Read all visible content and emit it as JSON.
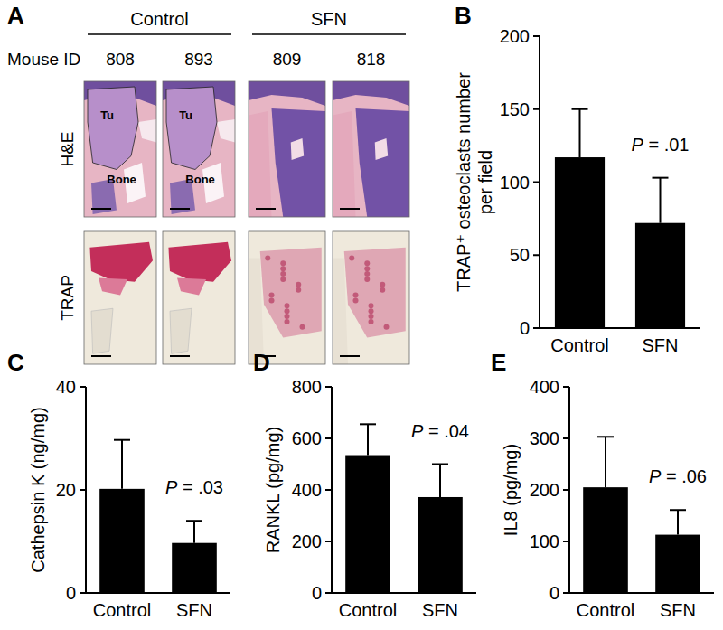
{
  "histology": {
    "panel": "A",
    "id_label": "Mouse ID",
    "groups": [
      {
        "label": "Control",
        "mouse_ids": [
          "808",
          "893"
        ]
      },
      {
        "label": "SFN",
        "mouse_ids": [
          "809",
          "818"
        ]
      }
    ],
    "rows": [
      "H&E",
      "TRAP"
    ],
    "annotations": [
      {
        "mouse": "808",
        "texts": [
          "Tu",
          "Bone"
        ]
      },
      {
        "mouse": "893",
        "texts": [
          "Tu",
          "Bone"
        ]
      }
    ]
  },
  "chart_data": [
    {
      "panel": "B",
      "type": "bar",
      "categories": [
        "Control",
        "SFN"
      ],
      "values": [
        117,
        72
      ],
      "errors": [
        33,
        31
      ],
      "color": "#000000",
      "ylim": [
        0,
        200
      ],
      "yticks": [
        0,
        50,
        100,
        150,
        200
      ],
      "y_label": [
        "TRAP⁺ osteoclasts number",
        "per field"
      ],
      "annotation": "P = .01"
    },
    {
      "panel": "C",
      "type": "bar",
      "categories": [
        "Control",
        "SFN"
      ],
      "values": [
        20.2,
        9.7
      ],
      "errors": [
        9.5,
        4.3
      ],
      "color": "#000000",
      "ylim": [
        0,
        40
      ],
      "yticks": [
        0,
        20,
        40
      ],
      "y_label": [
        "Cathepsin K (ng/mg)"
      ],
      "annotation": "P = .03"
    },
    {
      "panel": "D",
      "type": "bar",
      "categories": [
        "Control",
        "SFN"
      ],
      "values": [
        535,
        372
      ],
      "errors": [
        120,
        128
      ],
      "color": "#000000",
      "ylim": [
        0,
        800
      ],
      "yticks": [
        0,
        200,
        400,
        600,
        800
      ],
      "y_label": [
        "RANKL (pg/mg)"
      ],
      "annotation": "P = .04"
    },
    {
      "panel": "E",
      "type": "bar",
      "categories": [
        "Control",
        "SFN"
      ],
      "values": [
        205,
        113
      ],
      "errors": [
        98,
        48
      ],
      "color": "#000000",
      "ylim": [
        0,
        400
      ],
      "yticks": [
        0,
        100,
        200,
        300,
        400
      ],
      "y_label": [
        "IL8 (pg/mg)"
      ],
      "annotation": "P = .06"
    }
  ]
}
